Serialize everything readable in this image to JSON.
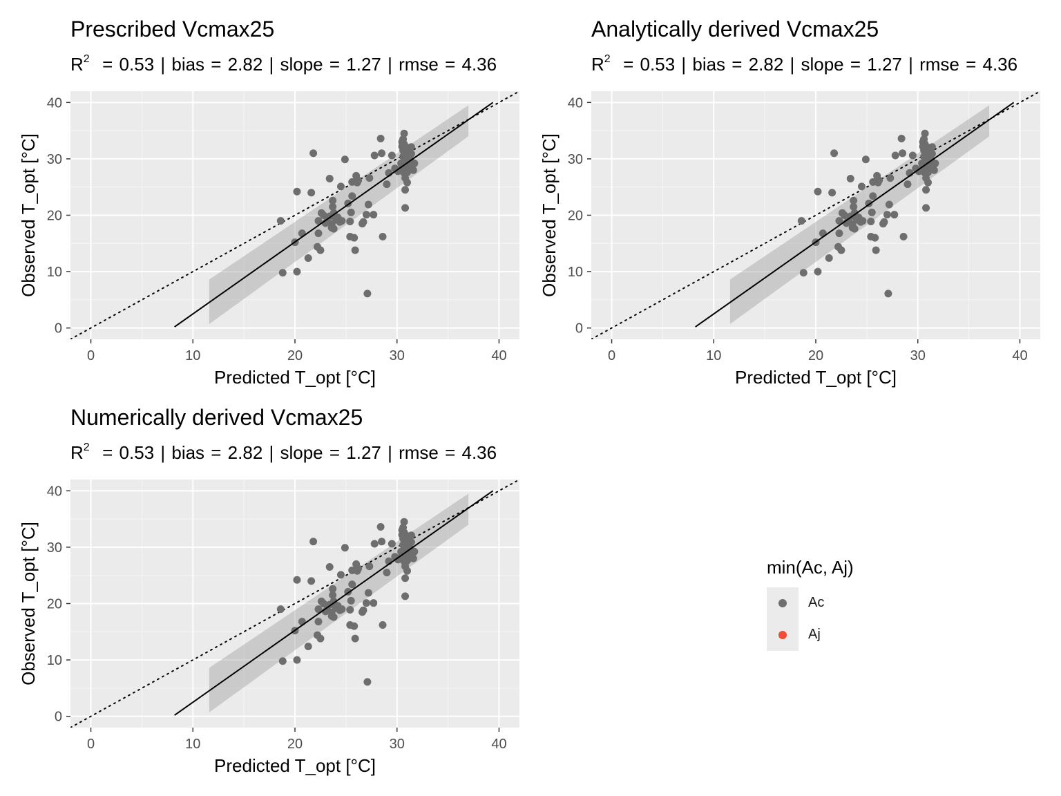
{
  "legend": {
    "title": "min(Ac, Aj)",
    "items": [
      {
        "label": "Ac",
        "color": "#6e6e6e"
      },
      {
        "label": "Aj",
        "color": "#f24b38"
      }
    ]
  },
  "panels": [
    {
      "title": "Prescribed Vcmax25",
      "metrics": {
        "r2_symbol": "R",
        "r2_sup": "2",
        "rest": "= 0.53 | bias = 2.82 | slope = 1.27 | rmse = 4.36"
      }
    },
    {
      "title": "Analytically derived Vcmax25",
      "metrics": {
        "r2_symbol": "R",
        "r2_sup": "2",
        "rest": "= 0.53 | bias = 2.82 | slope = 1.27 | rmse = 4.36"
      }
    },
    {
      "title": "Numerically derived Vcmax25",
      "metrics": {
        "r2_symbol": "R",
        "r2_sup": "2",
        "rest": "= 0.53 | bias = 2.82 | slope = 1.27 | rmse = 4.36"
      }
    }
  ],
  "chart_data": {
    "type": "scatter",
    "panels": [
      "Prescribed Vcmax25",
      "Analytically derived Vcmax25",
      "Numerically derived Vcmax25"
    ],
    "xlabel": "Predicted T_opt [°C]",
    "ylabel": "Observed T_opt [°C]",
    "xlim": [
      -2,
      42
    ],
    "ylim": [
      -2,
      42
    ],
    "xticks": [
      0,
      10,
      20,
      30,
      40
    ],
    "yticks": [
      0,
      10,
      20,
      30,
      40
    ],
    "grid": true,
    "legend_position": "right",
    "series": [
      {
        "name": "Ac",
        "color": "#6e6e6e",
        "points": [
          [
            18.6,
            19.0
          ],
          [
            18.8,
            9.8
          ],
          [
            20.0,
            15.2
          ],
          [
            20.2,
            24.2
          ],
          [
            20.2,
            10.0
          ],
          [
            20.7,
            16.8
          ],
          [
            21.3,
            12.4
          ],
          [
            21.6,
            24.0
          ],
          [
            21.8,
            31.0
          ],
          [
            22.2,
            14.4
          ],
          [
            22.3,
            16.8
          ],
          [
            22.3,
            19.0
          ],
          [
            22.5,
            13.8
          ],
          [
            22.6,
            20.4
          ],
          [
            22.8,
            20.0
          ],
          [
            23.0,
            18.6
          ],
          [
            23.2,
            19.4
          ],
          [
            23.4,
            19.8
          ],
          [
            23.4,
            26.5
          ],
          [
            23.6,
            17.8
          ],
          [
            23.6,
            18.4
          ],
          [
            23.7,
            21.5
          ],
          [
            23.7,
            22.6
          ],
          [
            23.8,
            17.6
          ],
          [
            23.8,
            20.4
          ],
          [
            24.0,
            19.2
          ],
          [
            24.2,
            19.6
          ],
          [
            24.4,
            18.8
          ],
          [
            24.5,
            25.1
          ],
          [
            24.6,
            19.0
          ],
          [
            24.9,
            29.9
          ],
          [
            25.2,
            22.1
          ],
          [
            25.4,
            16.2
          ],
          [
            25.4,
            18.9
          ],
          [
            25.5,
            20.5
          ],
          [
            25.6,
            25.9
          ],
          [
            25.6,
            23.4
          ],
          [
            25.8,
            16.0
          ],
          [
            25.9,
            13.8
          ],
          [
            26.0,
            27.0
          ],
          [
            26.1,
            25.8
          ],
          [
            26.2,
            26.2
          ],
          [
            26.6,
            18.5
          ],
          [
            26.7,
            18.8
          ],
          [
            27.0,
            20.1
          ],
          [
            27.1,
            6.1
          ],
          [
            27.2,
            21.9
          ],
          [
            27.3,
            26.6
          ],
          [
            27.7,
            20.1
          ],
          [
            27.8,
            30.6
          ],
          [
            28.4,
            33.6
          ],
          [
            28.5,
            31.0
          ],
          [
            28.6,
            16.2
          ],
          [
            29.0,
            25.5
          ],
          [
            29.2,
            27.5
          ],
          [
            29.5,
            30.6
          ],
          [
            29.8,
            28.3
          ],
          [
            30.1,
            27.8
          ],
          [
            30.4,
            29.2
          ],
          [
            30.5,
            28.6
          ],
          [
            30.5,
            32.2
          ],
          [
            30.5,
            33.0
          ],
          [
            30.6,
            30.4
          ],
          [
            30.6,
            31.5
          ],
          [
            30.6,
            33.5
          ],
          [
            30.7,
            34.5
          ],
          [
            30.7,
            32.6
          ],
          [
            30.7,
            29.6
          ],
          [
            30.7,
            28.2
          ],
          [
            30.7,
            27.5
          ],
          [
            30.8,
            26.6
          ],
          [
            30.8,
            24.5
          ],
          [
            30.8,
            21.3
          ],
          [
            30.9,
            31.0
          ],
          [
            30.9,
            30.0
          ],
          [
            31.0,
            32.0
          ],
          [
            31.0,
            29.0
          ],
          [
            31.0,
            27.6
          ],
          [
            31.0,
            25.8
          ],
          [
            31.1,
            31.4
          ],
          [
            31.2,
            28.6
          ],
          [
            31.2,
            30.4
          ],
          [
            31.3,
            29.8
          ],
          [
            31.4,
            32.1
          ],
          [
            31.4,
            30.9
          ],
          [
            31.5,
            29.3
          ],
          [
            31.6,
            28.0
          ],
          [
            31.7,
            29.2
          ]
        ]
      }
    ],
    "fit": {
      "x": [
        8.2,
        39.4
      ],
      "y": [
        0.2,
        40.0
      ]
    },
    "ci_band": {
      "x": [
        11.6,
        37.0
      ],
      "lower": [
        0.7,
        34.0
      ],
      "upper": [
        8.6,
        39.5
      ]
    },
    "reference_line": {
      "type": "1:1 dotted"
    }
  }
}
